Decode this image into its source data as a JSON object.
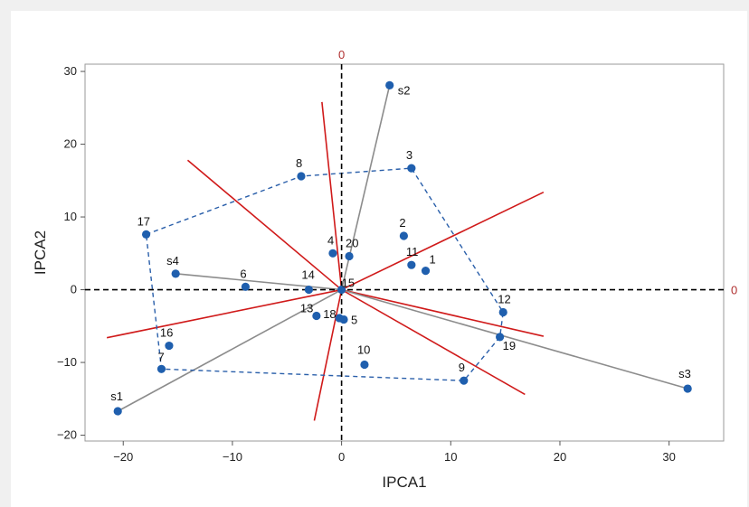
{
  "chart_data": {
    "type": "scatter",
    "xlabel": "IPCA1",
    "ylabel": "IPCA2",
    "xlim": [
      -23.5,
      35
    ],
    "ylim": [
      -20.8,
      31
    ],
    "xticks": [
      -20,
      -10,
      0,
      10,
      20,
      30
    ],
    "yticks": [
      -20,
      -10,
      0,
      10,
      20,
      30
    ],
    "reference_lines": {
      "x0_label": "0",
      "y0_label": "0",
      "color": "#000000",
      "label_color": "#b03030"
    },
    "genotypes": [
      {
        "label": "1",
        "x": 7.7,
        "y": 2.6
      },
      {
        "label": "2",
        "x": 5.7,
        "y": 7.4
      },
      {
        "label": "3",
        "x": 6.4,
        "y": 16.7
      },
      {
        "label": "4",
        "x": -0.8,
        "y": 5.0
      },
      {
        "label": "5",
        "x": 0.2,
        "y": -4.1
      },
      {
        "label": "6",
        "x": -8.8,
        "y": 0.4
      },
      {
        "label": "7",
        "x": -16.5,
        "y": -10.9
      },
      {
        "label": "8",
        "x": -3.7,
        "y": 15.6
      },
      {
        "label": "9",
        "x": 11.2,
        "y": -12.5
      },
      {
        "label": "10",
        "x": 2.1,
        "y": -10.3
      },
      {
        "label": "11",
        "x": 6.4,
        "y": 3.4
      },
      {
        "label": "12",
        "x": 14.8,
        "y": -3.1
      },
      {
        "label": "13",
        "x": -2.3,
        "y": -3.6
      },
      {
        "label": "14",
        "x": -3.0,
        "y": 0.0
      },
      {
        "label": "15",
        "x": 0.0,
        "y": 0.0
      },
      {
        "label": "16",
        "x": -15.8,
        "y": -7.7
      },
      {
        "label": "17",
        "x": -17.9,
        "y": 7.6
      },
      {
        "label": "18",
        "x": -0.2,
        "y": -3.9
      },
      {
        "label": "19",
        "x": 14.5,
        "y": -6.5
      },
      {
        "label": "20",
        "x": 0.7,
        "y": 4.6
      }
    ],
    "environments": [
      {
        "label": "s1",
        "x": -20.5,
        "y": -16.7
      },
      {
        "label": "s2",
        "x": 4.4,
        "y": 28.1
      },
      {
        "label": "s3",
        "x": 31.7,
        "y": -13.6
      },
      {
        "label": "s4",
        "x": -15.2,
        "y": 2.2
      }
    ],
    "hull_order": [
      "17",
      "8",
      "3",
      "12",
      "19",
      "9",
      "7"
    ],
    "red_rays": [
      [
        -1.8,
        25.8
      ],
      [
        -14.1,
        17.8
      ],
      [
        18.5,
        13.4
      ],
      [
        18.5,
        -6.4
      ],
      [
        16.8,
        -14.4
      ],
      [
        -2.5,
        -18.0
      ],
      [
        -21.5,
        -6.6
      ]
    ],
    "colors": {
      "point": "#1f5fae",
      "hull": "#2a5faa",
      "vector": "#8c8c8c",
      "ray": "#d01a1a",
      "frame": "#9a9a9a"
    }
  }
}
